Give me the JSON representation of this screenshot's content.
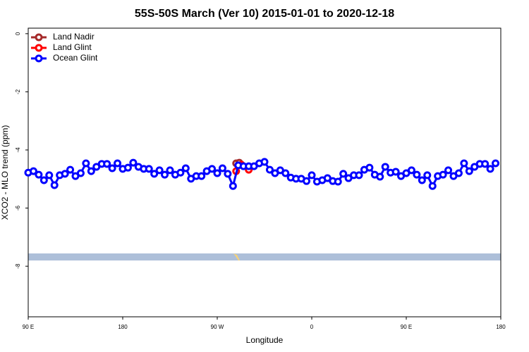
{
  "chart_data": {
    "type": "line",
    "title": "55S-50S March (Ver 10)   2015-01-01 to 2020-12-18",
    "xlabel": "Longitude",
    "ylabel": "XCO2 - MLO trend (ppm)",
    "xlim": [
      90,
      540
    ],
    "ylim": [
      -9.74,
      0.19
    ],
    "xticks": [
      {
        "value": 90,
        "label": "90 E"
      },
      180,
      {
        "value": 270,
        "label": "90 W"
      },
      {
        "value": 360,
        "label": "0"
      },
      {
        "value": 450,
        "label": "90 E"
      },
      {
        "value": 540,
        "label": "180"
      }
    ],
    "yticks": [
      0,
      -2,
      -4,
      -6,
      -8
    ],
    "legend": "top-left",
    "series": [
      {
        "name": "Land Nadir",
        "color": "#a52a2a",
        "x": [
          288,
          291
        ],
        "values": [
          -4.46,
          -4.44
        ]
      },
      {
        "name": "Land Glint",
        "color": "#ff0000",
        "x": [
          288,
          293,
          300
        ],
        "values": [
          -4.73,
          -4.51,
          -4.68
        ]
      },
      {
        "name": "Ocean Glint",
        "color": "#0000ff",
        "x": [
          90,
          95,
          100,
          105,
          110,
          115,
          120,
          125,
          130,
          135,
          140,
          145,
          150,
          155,
          160,
          165,
          170,
          175,
          180,
          185,
          190,
          195,
          200,
          205,
          210,
          215,
          220,
          225,
          230,
          235,
          240,
          245,
          250,
          255,
          260,
          265,
          270,
          275,
          280,
          285,
          290,
          295,
          300,
          305,
          310,
          315,
          320,
          325,
          330,
          335,
          340,
          345,
          350,
          355,
          360,
          365,
          370,
          375,
          380,
          385,
          390,
          395,
          400,
          405,
          410,
          415,
          420,
          425,
          430,
          435,
          440,
          445,
          450,
          455,
          460,
          465,
          470,
          475,
          480,
          485,
          490,
          495,
          500,
          505,
          510,
          515,
          520,
          525,
          530,
          535
        ],
        "values": [
          -4.78,
          -4.73,
          -4.85,
          -5.04,
          -4.87,
          -5.21,
          -4.87,
          -4.82,
          -4.68,
          -4.9,
          -4.8,
          -4.46,
          -4.73,
          -4.58,
          -4.48,
          -4.48,
          -4.63,
          -4.46,
          -4.65,
          -4.61,
          -4.44,
          -4.58,
          -4.65,
          -4.65,
          -4.82,
          -4.7,
          -4.85,
          -4.7,
          -4.85,
          -4.78,
          -4.63,
          -4.99,
          -4.9,
          -4.9,
          -4.73,
          -4.65,
          -4.8,
          -4.63,
          -4.82,
          -5.24,
          -4.53,
          -4.56,
          -4.56,
          -4.56,
          -4.46,
          -4.41,
          -4.68,
          -4.8,
          -4.7,
          -4.8,
          -4.95,
          -4.99,
          -4.99,
          -5.07,
          -4.87,
          -5.09,
          -5.04,
          -4.97,
          -5.07,
          -5.09,
          -4.82,
          -4.97,
          -4.87,
          -4.87,
          -4.68,
          -4.61,
          -4.85,
          -4.92,
          -4.58,
          -4.78,
          -4.75,
          -4.9,
          -4.8,
          -4.7,
          -4.85,
          -5.04,
          -4.87,
          -5.24,
          -4.9,
          -4.85,
          -4.7,
          -4.9,
          -4.8,
          -4.46,
          -4.73,
          -4.58,
          -4.48,
          -4.48,
          -4.65,
          -4.46
        ]
      }
    ]
  }
}
